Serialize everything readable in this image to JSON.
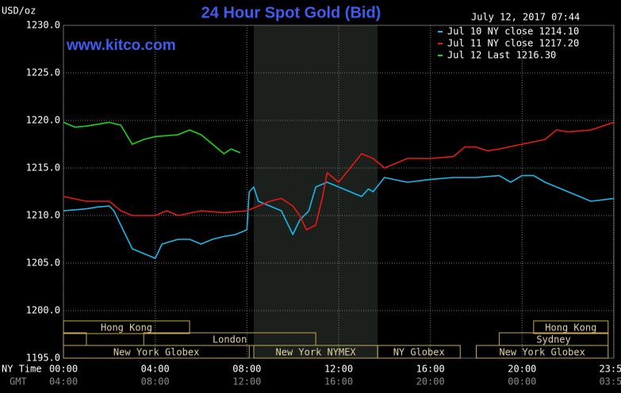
{
  "chart_data": {
    "type": "line",
    "title": "24 Hour Spot Gold (Bid)",
    "y_label": "USD/oz",
    "timestamp": "July 12, 2017 07:44",
    "watermark": "www.kitco.com",
    "x_label": "NY Time",
    "x2_label": "GMT",
    "xlim": [
      0,
      24
    ],
    "ylim": [
      1195,
      1230
    ],
    "xticks": [
      {
        "value": 0,
        "label": "00:00"
      },
      {
        "value": 4,
        "label": "04:00"
      },
      {
        "value": 8,
        "label": "08:00"
      },
      {
        "value": 12,
        "label": "12:00"
      },
      {
        "value": 16,
        "label": "16:00"
      },
      {
        "value": 20,
        "label": "20:00"
      },
      {
        "value": 23.983,
        "label": "23:59"
      }
    ],
    "x2ticks": [
      {
        "value": 0,
        "label": "04:00"
      },
      {
        "value": 4,
        "label": "08:00"
      },
      {
        "value": 8,
        "label": "12:00"
      },
      {
        "value": 12,
        "label": "16:00"
      },
      {
        "value": 16,
        "label": "20:00"
      },
      {
        "value": 20,
        "label": "00:00"
      },
      {
        "value": 23.983,
        "label": "03:59"
      }
    ],
    "yticks": [
      {
        "value": 1230,
        "label": "1230.0"
      },
      {
        "value": 1225,
        "label": "1225.0"
      },
      {
        "value": 1220,
        "label": "1220.0"
      },
      {
        "value": 1215,
        "label": "1215.0"
      },
      {
        "value": 1210,
        "label": "1210.0"
      },
      {
        "value": 1205,
        "label": "1205.0"
      },
      {
        "value": 1200,
        "label": "1200.0"
      },
      {
        "value": 1195,
        "label": "1195.0"
      }
    ],
    "grid": true,
    "series": [
      {
        "name": "Jul 10 NY close 1214.10",
        "color": "#19b8e8",
        "x": [
          0,
          0.5,
          1,
          1.5,
          2,
          2.2,
          2.5,
          2.8,
          3,
          3.5,
          4,
          4.3,
          5,
          5.5,
          6,
          6.5,
          7,
          7.5,
          8,
          8.1,
          8.3,
          8.5,
          9,
          9.5,
          10,
          10.3,
          10.7,
          11,
          11.5,
          12,
          12.5,
          13,
          13.3,
          13.5,
          14,
          15,
          16,
          17,
          18,
          19,
          19.5,
          20,
          20.5,
          21,
          22,
          23,
          24
        ],
        "values": [
          1210.5,
          1210.6,
          1210.7,
          1210.9,
          1211.0,
          1210.5,
          1209.0,
          1207.5,
          1206.5,
          1206.0,
          1205.5,
          1207.0,
          1207.5,
          1207.5,
          1207.0,
          1207.5,
          1207.8,
          1208.0,
          1208.5,
          1212.5,
          1213.0,
          1211.5,
          1211.0,
          1210.5,
          1208.0,
          1209.5,
          1210.5,
          1213.0,
          1213.5,
          1213.0,
          1212.5,
          1212.0,
          1212.8,
          1212.5,
          1214.0,
          1213.5,
          1213.8,
          1214.0,
          1214.0,
          1214.2,
          1213.5,
          1214.2,
          1214.2,
          1213.5,
          1212.5,
          1211.5,
          1211.8
        ]
      },
      {
        "name": "Jul 11 NY close 1217.20",
        "color": "#e81818",
        "x": [
          0,
          1,
          2,
          2.5,
          3,
          4,
          4.5,
          5,
          6,
          7,
          8,
          8.5,
          9,
          9.5,
          10,
          10.3,
          10.6,
          11,
          11.3,
          11.5,
          12,
          12.5,
          13,
          13.5,
          14,
          14.5,
          15,
          16,
          17,
          17.5,
          18,
          18.5,
          19,
          20,
          21,
          21.5,
          22,
          23,
          24
        ],
        "values": [
          1212.0,
          1211.5,
          1211.5,
          1210.5,
          1210.0,
          1210.0,
          1210.5,
          1210.0,
          1210.5,
          1210.3,
          1210.5,
          1211.0,
          1211.5,
          1211.8,
          1211.0,
          1210.0,
          1208.5,
          1209.0,
          1212.0,
          1214.5,
          1213.5,
          1215.0,
          1216.5,
          1216.0,
          1215.0,
          1215.5,
          1216.0,
          1216.0,
          1216.2,
          1217.2,
          1217.2,
          1216.8,
          1217.0,
          1217.5,
          1218.0,
          1219.0,
          1218.8,
          1219.0,
          1219.8
        ]
      },
      {
        "name": "Jul 12 Last 1216.30",
        "color": "#18d818",
        "x": [
          0,
          0.5,
          1,
          1.5,
          2,
          2.5,
          3,
          3.5,
          4,
          5,
          5.5,
          6,
          6.5,
          7,
          7.3,
          7.7
        ],
        "values": [
          1219.8,
          1219.3,
          1219.4,
          1219.6,
          1219.8,
          1219.5,
          1217.5,
          1218.0,
          1218.3,
          1218.5,
          1219.0,
          1218.5,
          1217.5,
          1216.5,
          1217.0,
          1216.6
        ]
      }
    ],
    "sessions": [
      {
        "label": "Hong Kong",
        "start": 0,
        "end": 5.5,
        "row": 0
      },
      {
        "label": "Hong Kong",
        "start": 20.5,
        "end": 23.75,
        "row": 0
      },
      {
        "start": 0,
        "end": 1,
        "row": 1
      },
      {
        "label": "London",
        "start": 3.5,
        "end": 11,
        "row": 1
      },
      {
        "label": "Sydney",
        "start": 19,
        "end": 23.75,
        "row": 1
      },
      {
        "label": "New York Globex",
        "start": 0,
        "end": 8.1,
        "row": 2
      },
      {
        "label": "New York NYMEX",
        "start": 8.3,
        "end": 13.7,
        "row": 2
      },
      {
        "label": "NY Globex",
        "start": 13.7,
        "end": 17.3,
        "row": 2
      },
      {
        "label": "New York Globex",
        "start": 18,
        "end": 23.75,
        "row": 2
      }
    ]
  }
}
